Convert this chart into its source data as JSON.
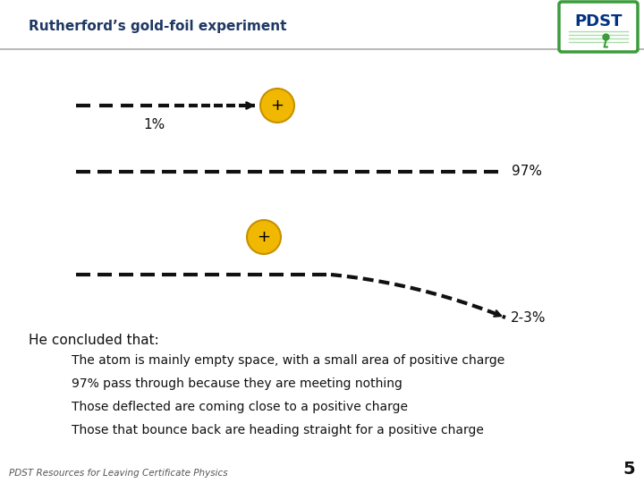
{
  "title": "Rutherford’s gold-foil experiment",
  "title_color": "#1f3864",
  "title_fontsize": 11,
  "bg_color": "#ffffff",
  "nucleus_color": "#f0b800",
  "nucleus_border": "#c89000",
  "nucleus_plus_color": "#000000",
  "line_color": "#111111",
  "separator_color": "#aaaaaa",
  "label_1pct": "1%",
  "label_97pct": "97%",
  "label_23pct": "2-3%",
  "label_he": "He concluded that:",
  "conclusion_1": "The atom is mainly empty space, with a small area of positive charge",
  "conclusion_2": "97% pass through because they are meeting nothing",
  "conclusion_3": "Those deflected are coming close to a positive charge",
  "conclusion_4": "Those that bounce back are heading straight for a positive charge",
  "footer": "PDST Resources for Leaving Certificate Physics",
  "page_num": "5",
  "pdst_green": "#3a9c3a",
  "pdst_blue": "#003380"
}
